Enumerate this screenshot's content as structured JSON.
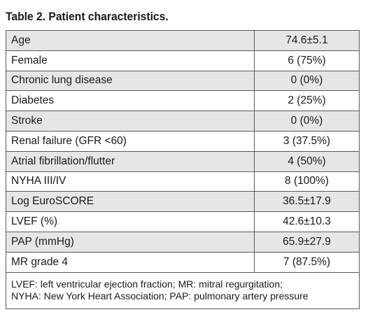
{
  "title": "Table 2. Patient characteristics.",
  "rows": [
    {
      "label": "Age",
      "value": "74.6±5.1"
    },
    {
      "label": "Female",
      "value": "6 (75%)"
    },
    {
      "label": "Chronic lung disease",
      "value": "0 (0%)"
    },
    {
      "label": "Diabetes",
      "value": "2 (25%)"
    },
    {
      "label": "Stroke",
      "value": "0 (0%)"
    },
    {
      "label": "Renal failure (GFR <60)",
      "value": "3 (37.5%)"
    },
    {
      "label": "Atrial fibrillation/flutter",
      "value": "4 (50%)"
    },
    {
      "label": "NYHA III/IV",
      "value": "8 (100%)"
    },
    {
      "label": "Log EuroSCORE",
      "value": "36.5±17.9"
    },
    {
      "label": "LVEF (%)",
      "value": "42.6±10.3"
    },
    {
      "label": "PAP (mmHg)",
      "value": "65.9±27.9"
    },
    {
      "label": "MR grade 4",
      "value": "7 (87.5%)"
    }
  ],
  "footnote": {
    "line1": "LVEF: left ventricular ejection fraction; MR: mitral regurgitation;",
    "line2": "NYHA: New York Heart Association; PAP: pulmonary artery pressure"
  },
  "colors": {
    "shaded_row": "#e6e6e6",
    "plain_row": "#ffffff",
    "border": "#5a5a5a"
  }
}
